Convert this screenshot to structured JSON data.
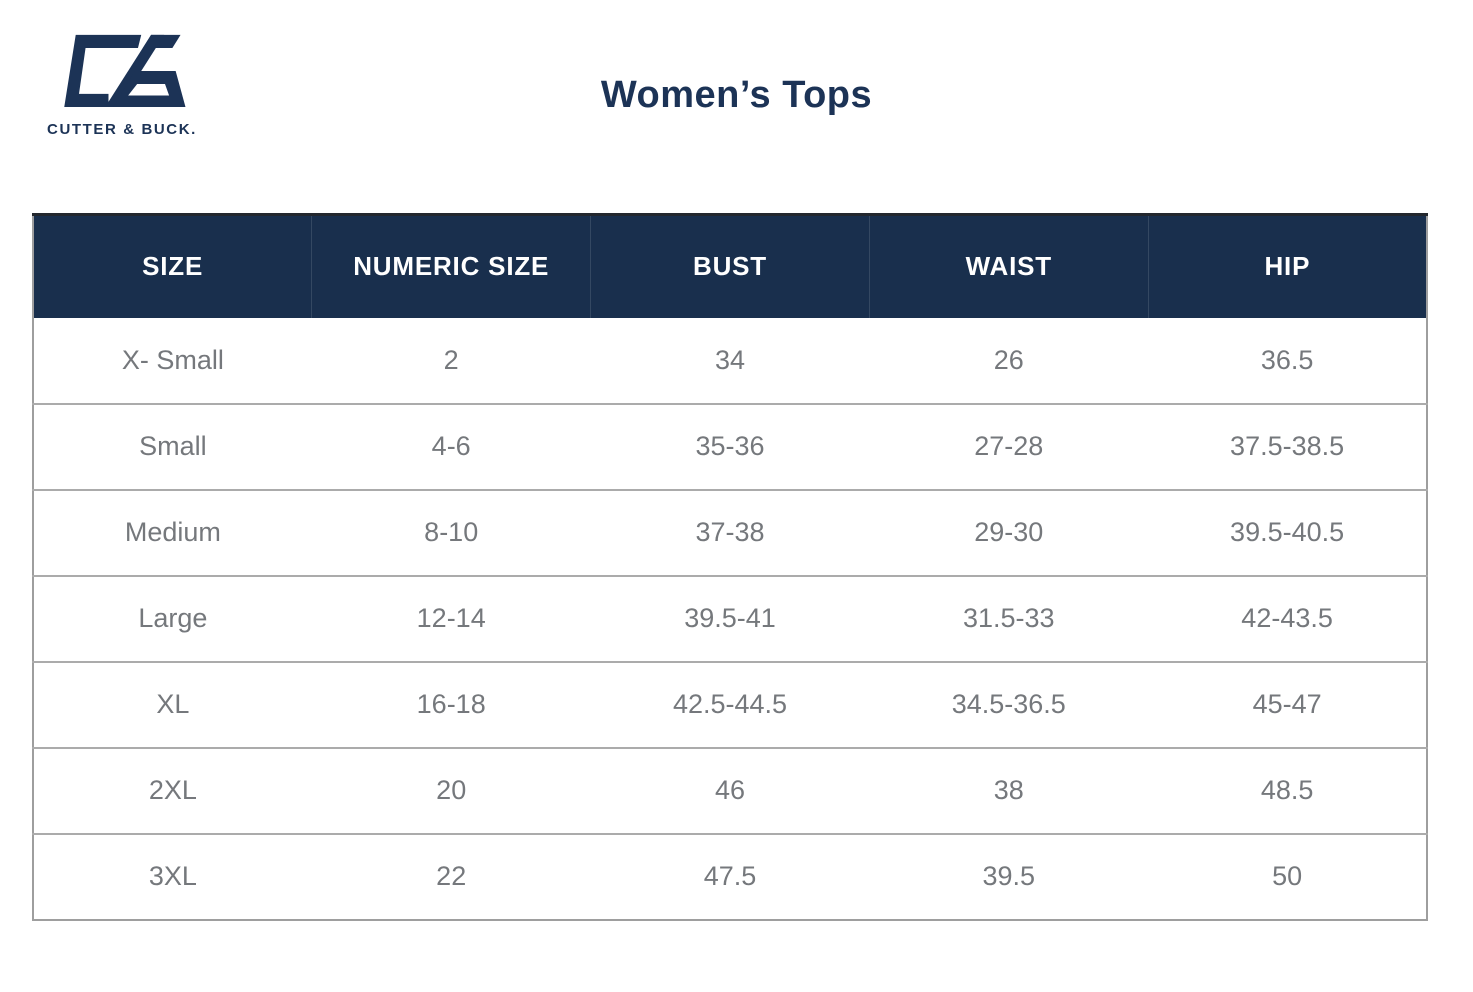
{
  "brand": {
    "logo_text": "CUTTER & BUCK.",
    "logo_mark": "cb-monogram",
    "navy": "#1c3356"
  },
  "page": {
    "title": "Women’s Tops",
    "background": "#ffffff"
  },
  "table": {
    "header_bg": "#192f4d",
    "header_text_color": "#ffffff",
    "body_text_color": "#75787c",
    "border_color": "#9e9e9e",
    "columns": [
      "SIZE",
      "NUMERIC SIZE",
      "BUST",
      "WAIST",
      "HIP"
    ],
    "rows": [
      [
        "X- Small",
        "2",
        "34",
        "26",
        "36.5"
      ],
      [
        "Small",
        "4-6",
        "35-36",
        "27-28",
        "37.5-38.5"
      ],
      [
        "Medium",
        "8-10",
        "37-38",
        "29-30",
        "39.5-40.5"
      ],
      [
        "Large",
        "12-14",
        "39.5-41",
        "31.5-33",
        "42-43.5"
      ],
      [
        "XL",
        "16-18",
        "42.5-44.5",
        "34.5-36.5",
        "45-47"
      ],
      [
        "2XL",
        "20",
        "46",
        "38",
        "48.5"
      ],
      [
        "3XL",
        "22",
        "47.5",
        "39.5",
        "50"
      ]
    ]
  }
}
